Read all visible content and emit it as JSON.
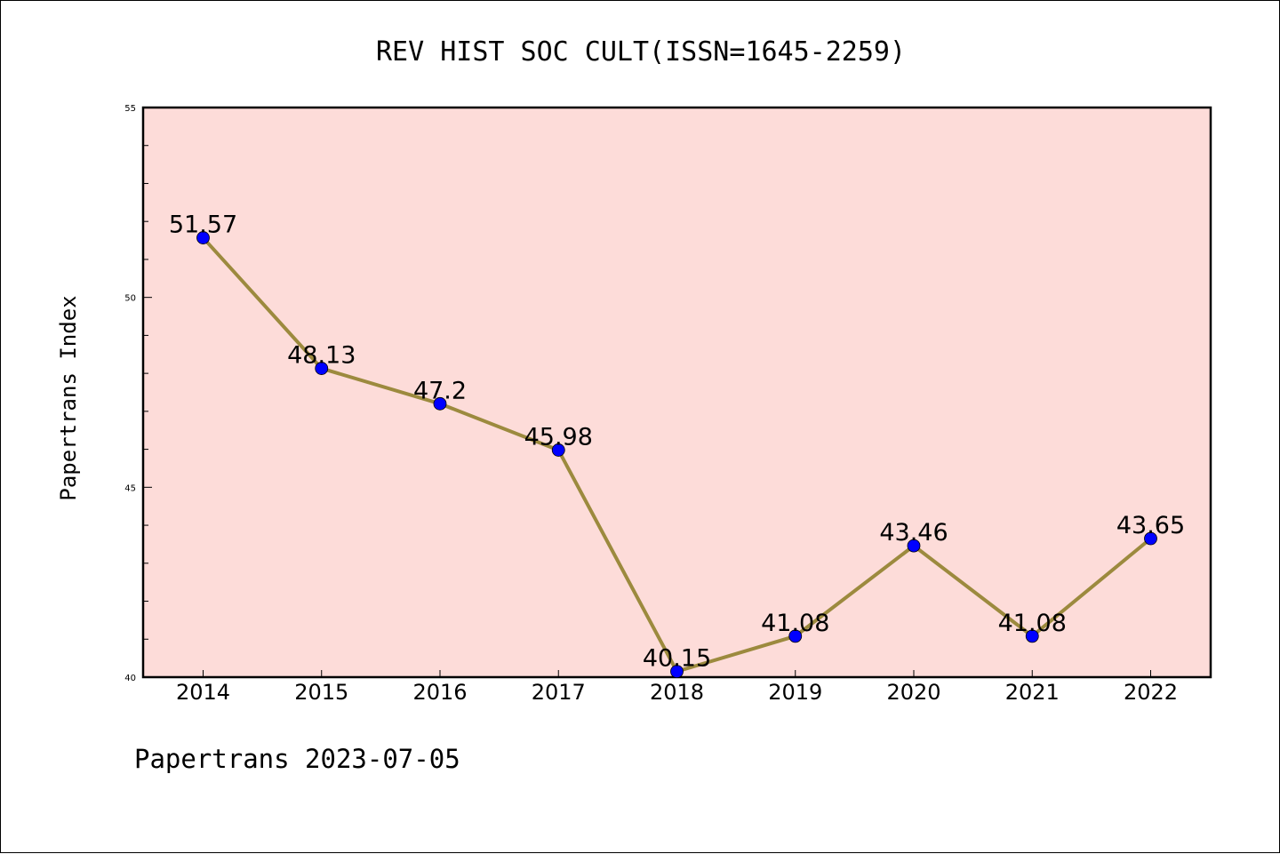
{
  "chart_data": {
    "type": "line",
    "title": "REV HIST SOC CULT(ISSN=1645-2259)",
    "xlabel": "",
    "ylabel": "Papertrans Index",
    "categories": [
      "2014",
      "2015",
      "2016",
      "2017",
      "2018",
      "2019",
      "2020",
      "2021",
      "2022"
    ],
    "series": [
      {
        "values": [
          51.57,
          48.13,
          47.2,
          45.98,
          40.15,
          41.08,
          43.46,
          41.08,
          43.65
        ],
        "labels": [
          "51.57",
          "48.13",
          "47.2",
          "45.98",
          "40.15",
          "41.08",
          "43.46",
          "41.08",
          "43.65"
        ],
        "line_color": "#9c8a3e",
        "marker_color": "#0000ff"
      }
    ],
    "ylim": [
      40,
      55
    ],
    "yticks": [
      "40",
      "45",
      "50",
      "55"
    ],
    "plot_background": "#fddcd9",
    "grid": false,
    "legend": "none"
  },
  "footer": {
    "text": "Papertrans 2023-07-05"
  }
}
